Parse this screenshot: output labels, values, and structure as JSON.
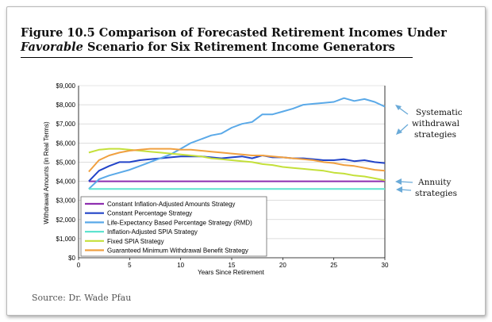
{
  "figure": {
    "title_line1": "Figure 10.5 Comparison of Forecasted Retirement Incomes Under",
    "title_line2_italic": "Favorable",
    "title_line2_rest": " Scenario for Six Retirement Income Generators",
    "source": "Source: Dr. Wade Pfau"
  },
  "annotations": {
    "systematic": [
      "Systematic",
      "withdrawal",
      "strategies"
    ],
    "annuity": [
      "Annuity",
      "strategies"
    ]
  },
  "chart_data": {
    "type": "line",
    "xlabel": "Years Since Retirement",
    "ylabel": "Withdrawal Amounts (in Real Terms)",
    "xlim": [
      0,
      30
    ],
    "ylim": [
      0,
      9000
    ],
    "xticks": [
      0,
      5,
      10,
      15,
      20,
      25,
      30
    ],
    "xtick_labels": [
      "0",
      "5",
      "10",
      "15",
      "20",
      "25",
      "30"
    ],
    "yticks": [
      0,
      1000,
      2000,
      3000,
      4000,
      5000,
      6000,
      7000,
      8000,
      9000
    ],
    "ytick_labels": [
      "$0",
      "$1,000",
      "$2,000",
      "$3,000",
      "$4,000",
      "$5,000",
      "$6,000",
      "$7,000",
      "$8,000",
      "$9,000"
    ],
    "legend_position": "lower-left",
    "x": [
      1,
      2,
      3,
      4,
      5,
      6,
      7,
      8,
      9,
      10,
      11,
      12,
      13,
      14,
      15,
      16,
      17,
      18,
      19,
      20,
      21,
      22,
      23,
      24,
      25,
      26,
      27,
      28,
      29,
      30
    ],
    "series": [
      {
        "name": "Constant Inflation-Adjusted Amounts Strategy",
        "color": "#8e2fb0",
        "values": [
          4000,
          4000,
          4000,
          4000,
          4000,
          4000,
          4000,
          4000,
          4000,
          4000,
          4000,
          4000,
          4000,
          4000,
          4000,
          4000,
          4000,
          4000,
          4000,
          4000,
          4000,
          4000,
          4000,
          4000,
          4000,
          4000,
          4000,
          4000,
          4000,
          4000
        ]
      },
      {
        "name": "Constant Percentage Strategy",
        "color": "#2244c8",
        "values": [
          4000,
          4550,
          4800,
          5000,
          5000,
          5100,
          5150,
          5200,
          5250,
          5300,
          5300,
          5300,
          5250,
          5200,
          5250,
          5300,
          5200,
          5350,
          5250,
          5250,
          5200,
          5200,
          5150,
          5100,
          5100,
          5150,
          5050,
          5100,
          5000,
          4950
        ]
      },
      {
        "name": "Life-Expectancy Based Percentage Strategy (RMD)",
        "color": "#5aa9e8",
        "values": [
          3600,
          4100,
          4300,
          4450,
          4600,
          4800,
          5000,
          5200,
          5400,
          5700,
          6000,
          6200,
          6400,
          6500,
          6800,
          7000,
          7100,
          7500,
          7500,
          7650,
          7800,
          8000,
          8050,
          8100,
          8150,
          8350,
          8200,
          8300,
          8150,
          7900
        ]
      },
      {
        "name": "Inflation-Adjusted SPIA Strategy",
        "color": "#5fe3d0",
        "values": [
          3600,
          3600,
          3600,
          3600,
          3600,
          3600,
          3600,
          3600,
          3600,
          3600,
          3600,
          3600,
          3600,
          3600,
          3600,
          3600,
          3600,
          3600,
          3600,
          3600,
          3600,
          3600,
          3600,
          3600,
          3600,
          3600,
          3600,
          3600,
          3600,
          3600
        ]
      },
      {
        "name": "Fixed SPIA Strategy",
        "color": "#c4e03a",
        "values": [
          5500,
          5650,
          5700,
          5700,
          5650,
          5600,
          5550,
          5500,
          5450,
          5400,
          5350,
          5300,
          5200,
          5150,
          5100,
          5050,
          5000,
          4900,
          4850,
          4750,
          4700,
          4650,
          4600,
          4550,
          4450,
          4400,
          4300,
          4250,
          4150,
          4050
        ]
      },
      {
        "name": "Guaranteed Minimum Withdrawal Benefit Strategy",
        "color": "#f0a040",
        "values": [
          4500,
          5100,
          5350,
          5500,
          5600,
          5650,
          5700,
          5700,
          5700,
          5650,
          5650,
          5600,
          5550,
          5500,
          5450,
          5400,
          5350,
          5350,
          5300,
          5250,
          5200,
          5150,
          5100,
          5000,
          4950,
          4850,
          4800,
          4700,
          4600,
          4550
        ]
      }
    ]
  }
}
